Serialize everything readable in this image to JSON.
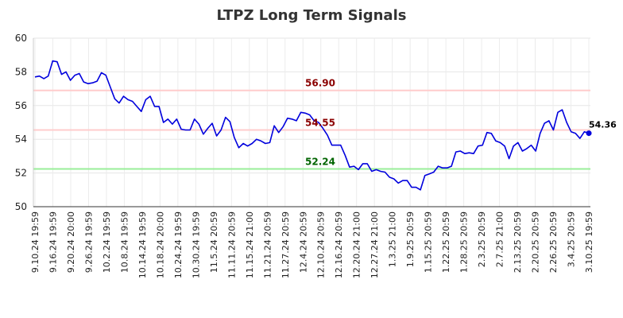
{
  "chart_data": {
    "type": "line",
    "title": "LTPZ Long Term Signals",
    "xlabel": "",
    "ylabel": "",
    "ylim": [
      50,
      60
    ],
    "yticks": [
      "50",
      "52",
      "54",
      "56",
      "58",
      "60"
    ],
    "grid": true,
    "line_color": "#0000dd",
    "x_tick_labels": [
      "9.10.24 19:59",
      "9.16.24 19:59",
      "9.20.24 20:00",
      "9.26.24 19:59",
      "10.2.24 19:59",
      "10.8.24 19:59",
      "10.14.24 19:59",
      "10.18.24 20:00",
      "10.24.24 19:59",
      "10.30.24 19:59",
      "11.5.24 20:59",
      "11.11.24 20:59",
      "11.15.24 21:00",
      "11.21.24 20:59",
      "11.27.24 20:59",
      "12.4.24 20:59",
      "12.10.24 20:59",
      "12.16.24 20:59",
      "12.20.24 21:00",
      "12.27.24 21:00",
      "1.3.25 21:00",
      "1.9.25 20:59",
      "1.15.25 20:59",
      "1.22.25 20:59",
      "1.28.25 20:59",
      "2.3.25 20:59",
      "2.7.25 21:00",
      "2.13.25 20:59",
      "2.20.25 20:59",
      "2.26.25 20:59",
      "3.4.25 20:59",
      "3.10.25 19:59"
    ],
    "values": [
      57.7,
      57.75,
      57.6,
      57.75,
      58.65,
      58.6,
      57.85,
      58.0,
      57.5,
      57.8,
      57.9,
      57.4,
      57.3,
      57.35,
      57.45,
      57.95,
      57.8,
      57.1,
      56.4,
      56.15,
      56.55,
      56.35,
      56.25,
      55.95,
      55.65,
      56.35,
      56.55,
      55.95,
      55.95,
      55.0,
      55.2,
      54.9,
      55.2,
      54.6,
      54.55,
      54.55,
      55.2,
      54.9,
      54.3,
      54.65,
      54.95,
      54.2,
      54.55,
      55.3,
      55.05,
      54.1,
      53.5,
      53.75,
      53.6,
      53.75,
      54.0,
      53.9,
      53.75,
      53.8,
      54.8,
      54.4,
      54.75,
      55.25,
      55.2,
      55.1,
      55.6,
      55.55,
      55.45,
      55.1,
      55.0,
      54.65,
      54.25,
      53.65,
      53.65,
      53.65,
      53.05,
      52.35,
      52.4,
      52.2,
      52.55,
      52.55,
      52.1,
      52.2,
      52.1,
      52.05,
      51.75,
      51.65,
      51.4,
      51.55,
      51.55,
      51.15,
      51.15,
      51.0,
      51.85,
      51.95,
      52.05,
      52.4,
      52.3,
      52.3,
      52.4,
      53.25,
      53.3,
      53.15,
      53.2,
      53.15,
      53.6,
      53.65,
      54.4,
      54.35,
      53.9,
      53.8,
      53.6,
      52.85,
      53.6,
      53.8,
      53.3,
      53.45,
      53.65,
      53.3,
      54.35,
      54.95,
      55.1,
      54.55,
      55.6,
      55.75,
      55.0,
      54.45,
      54.35,
      54.05,
      54.45,
      54.36
    ],
    "reference_lines": [
      {
        "value": 56.9,
        "label": "56.90",
        "line_color": "#ffcccc",
        "label_color": "#8b0000"
      },
      {
        "value": 54.55,
        "label": "54.55",
        "line_color": "#ffcccc",
        "label_color": "#8b0000"
      },
      {
        "value": 52.24,
        "label": "52.24",
        "line_color": "#99ee99",
        "label_color": "#006400"
      }
    ],
    "last_value_label": "54.36"
  }
}
